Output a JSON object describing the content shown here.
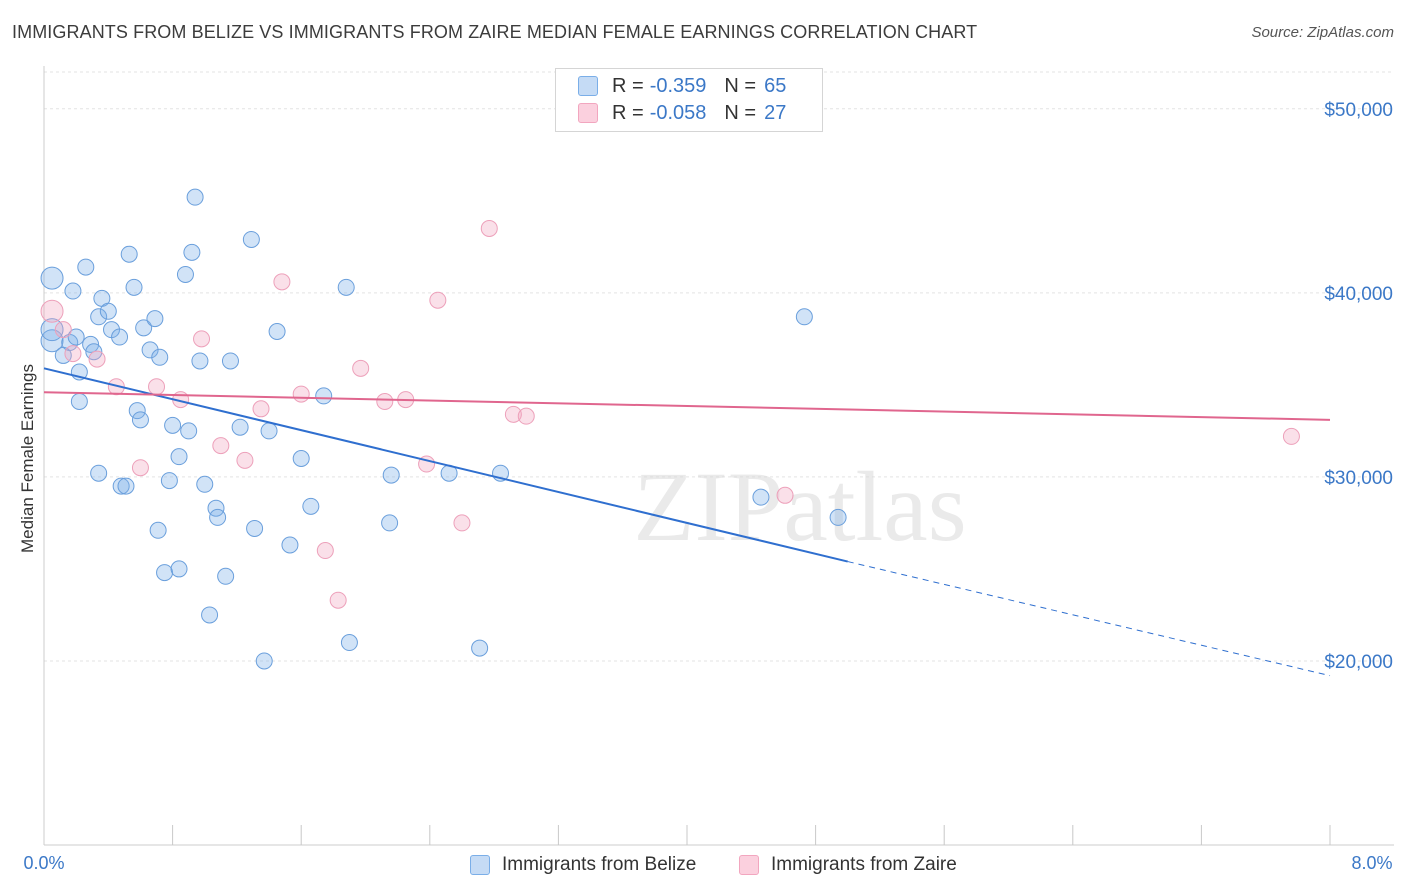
{
  "chart_data": {
    "type": "scatter",
    "title": "IMMIGRANTS FROM BELIZE VS IMMIGRANTS FROM ZAIRE MEDIAN FEMALE EARNINGS CORRELATION CHART",
    "source": "Source: ZipAtlas.com",
    "xlabel": "",
    "ylabel": "Median Female Earnings",
    "xlim": [
      0,
      8
    ],
    "ylim": [
      10000,
      52000
    ],
    "x_tick_labels": [
      "0.0%",
      "8.0%"
    ],
    "y_ticks": [
      20000,
      30000,
      40000,
      50000
    ],
    "y_tick_labels": [
      "$20,000",
      "$30,000",
      "$40,000",
      "$50,000"
    ],
    "watermark": "ZIPatlas",
    "legend": {
      "series": [
        {
          "name": "Immigrants from Belize",
          "r_label": "R =",
          "r": "-0.359",
          "n_label": "N =",
          "n": "65"
        },
        {
          "name": "Immigrants from Zaire",
          "r_label": "R =",
          "r": "-0.058",
          "n_label": "N =",
          "n": "27"
        }
      ]
    },
    "series": [
      {
        "name": "Immigrants from Belize",
        "color": "#7aaee8",
        "line_color": "#2f6fcf",
        "trend": {
          "x_start": 0,
          "y_start": 35900,
          "x_solid_end": 5.0,
          "y_solid_end": 25400,
          "x_end": 8,
          "y_end": 19200
        },
        "points": [
          [
            0.05,
            40800
          ],
          [
            0.05,
            37400
          ],
          [
            0.05,
            38000
          ],
          [
            0.12,
            36600
          ],
          [
            0.16,
            37300
          ],
          [
            0.2,
            37600
          ],
          [
            0.18,
            40100
          ],
          [
            0.26,
            41400
          ],
          [
            0.22,
            35700
          ],
          [
            0.29,
            37200
          ],
          [
            0.31,
            36800
          ],
          [
            0.34,
            38700
          ],
          [
            0.36,
            39700
          ],
          [
            0.4,
            39000
          ],
          [
            0.42,
            38000
          ],
          [
            0.47,
            37600
          ],
          [
            0.53,
            42100
          ],
          [
            0.56,
            40300
          ],
          [
            0.62,
            38100
          ],
          [
            0.66,
            36900
          ],
          [
            0.69,
            38600
          ],
          [
            0.72,
            36500
          ],
          [
            0.88,
            41000
          ],
          [
            0.92,
            42200
          ],
          [
            0.94,
            45200
          ],
          [
            0.97,
            36300
          ],
          [
            1.16,
            36300
          ],
          [
            1.29,
            42900
          ],
          [
            1.45,
            37900
          ],
          [
            1.88,
            40300
          ],
          [
            0.22,
            34100
          ],
          [
            0.58,
            33600
          ],
          [
            0.6,
            33100
          ],
          [
            0.8,
            32800
          ],
          [
            0.84,
            31100
          ],
          [
            0.9,
            32500
          ],
          [
            1.22,
            32700
          ],
          [
            1.4,
            32500
          ],
          [
            1.6,
            31000
          ],
          [
            1.74,
            34400
          ],
          [
            0.34,
            30200
          ],
          [
            0.48,
            29500
          ],
          [
            0.51,
            29500
          ],
          [
            0.78,
            29800
          ],
          [
            1.07,
            28300
          ],
          [
            1.08,
            27800
          ],
          [
            1.31,
            27200
          ],
          [
            1.53,
            26300
          ],
          [
            1.66,
            28400
          ],
          [
            2.16,
            30100
          ],
          [
            2.52,
            30200
          ],
          [
            2.84,
            30200
          ],
          [
            2.15,
            27500
          ],
          [
            0.71,
            27100
          ],
          [
            0.75,
            24800
          ],
          [
            0.84,
            25000
          ],
          [
            1.13,
            24600
          ],
          [
            1.03,
            22500
          ],
          [
            1.37,
            20000
          ],
          [
            1.9,
            21000
          ],
          [
            2.71,
            20700
          ],
          [
            4.46,
            28900
          ],
          [
            4.73,
            38700
          ],
          [
            4.94,
            27800
          ],
          [
            1.0,
            29600
          ]
        ]
      },
      {
        "name": "Immigrants from Zaire",
        "color": "#f2a6bf",
        "line_color": "#e0668e",
        "trend": {
          "x_start": 0,
          "y_start": 34600,
          "x_end": 8,
          "y_end": 33100
        },
        "points": [
          [
            0.05,
            39000
          ],
          [
            0.12,
            38000
          ],
          [
            0.18,
            36700
          ],
          [
            0.33,
            36400
          ],
          [
            0.45,
            34900
          ],
          [
            0.7,
            34900
          ],
          [
            0.85,
            34200
          ],
          [
            0.98,
            37500
          ],
          [
            1.1,
            31700
          ],
          [
            1.25,
            30900
          ],
          [
            1.35,
            33700
          ],
          [
            0.6,
            30500
          ],
          [
            1.48,
            40600
          ],
          [
            1.6,
            34500
          ],
          [
            1.97,
            35900
          ],
          [
            2.12,
            34100
          ],
          [
            2.25,
            34200
          ],
          [
            2.38,
            30700
          ],
          [
            2.45,
            39600
          ],
          [
            2.6,
            27500
          ],
          [
            1.75,
            26000
          ],
          [
            1.83,
            23300
          ],
          [
            2.77,
            43500
          ],
          [
            2.92,
            33400
          ],
          [
            3.0,
            33300
          ],
          [
            4.61,
            29000
          ],
          [
            7.76,
            32200
          ]
        ]
      }
    ]
  }
}
